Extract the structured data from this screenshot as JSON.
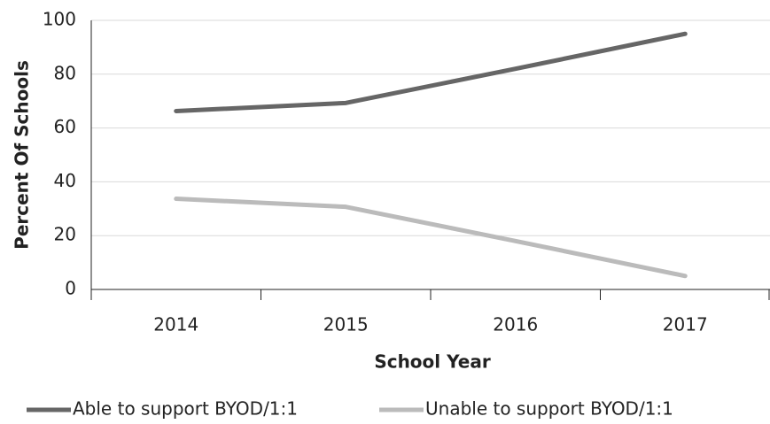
{
  "chart_data": {
    "type": "line",
    "x_label": "School Year",
    "y_label": "Percent Of Schools",
    "categories": [
      "2014",
      "2015",
      "2016",
      "2017"
    ],
    "series": [
      {
        "name": "Able to support BYOD/1:1",
        "color": "#666666",
        "values": [
          66.3,
          69.3,
          82,
          95
        ]
      },
      {
        "name": "Unable to support BYOD/1:1",
        "color": "#bbbbbb",
        "values": [
          33.7,
          30.7,
          18,
          5
        ]
      }
    ],
    "ylim": [
      0,
      100
    ],
    "yticks": [
      0,
      20,
      40,
      60,
      80,
      100
    ],
    "grid": true,
    "legend": "bottom"
  }
}
